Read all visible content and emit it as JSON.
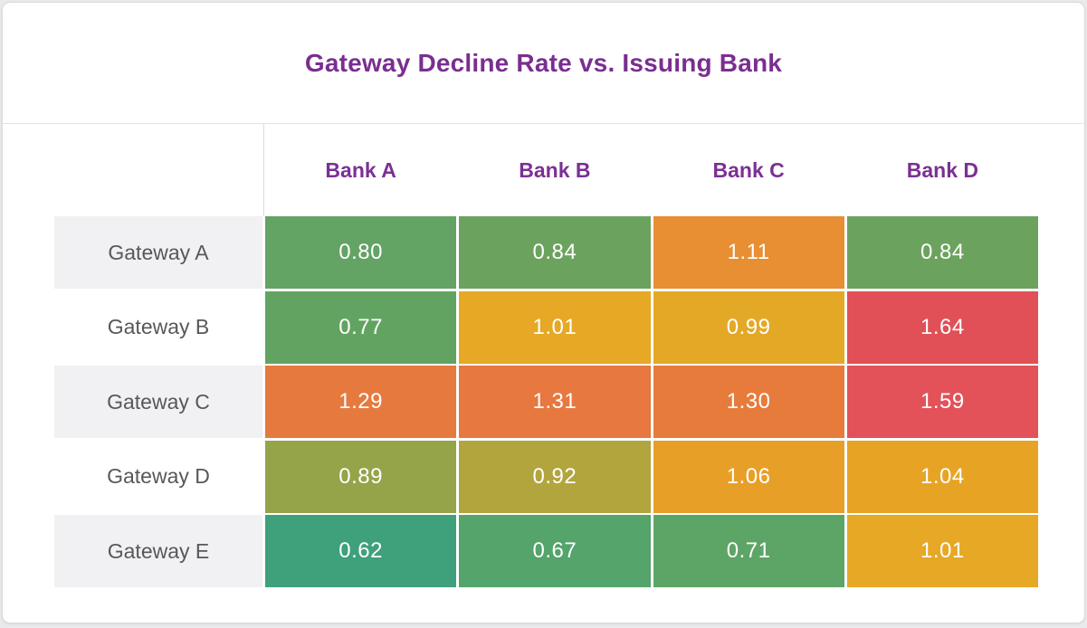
{
  "card": {
    "title": "Gateway Decline Rate vs. Issuing Bank"
  },
  "colors": {
    "title_text": "#7a2e90",
    "column_header_text": "#7b3094",
    "row_label_text": "#57585a",
    "row_stripe": "#f1f1f3",
    "cell_text": "#ffffff",
    "card_background": "#ffffff",
    "card_border": "#d9dadd",
    "header_separator": "#e3e3e6",
    "page_background": "#e9eaec"
  },
  "chart_data": {
    "type": "heatmap",
    "title": "Gateway Decline Rate vs. Issuing Bank",
    "x_categories": [
      "Bank A",
      "Bank B",
      "Bank C",
      "Bank D"
    ],
    "y_categories": [
      "Gateway A",
      "Gateway B",
      "Gateway C",
      "Gateway D",
      "Gateway E"
    ],
    "values": [
      [
        0.8,
        0.84,
        1.11,
        0.84
      ],
      [
        0.77,
        1.01,
        0.99,
        1.64
      ],
      [
        1.29,
        1.31,
        1.3,
        1.59
      ],
      [
        0.89,
        0.92,
        1.06,
        1.04
      ],
      [
        0.62,
        0.67,
        0.71,
        1.01
      ]
    ],
    "cell_labels": [
      [
        "0.80",
        "0.84",
        "1.11",
        "0.84"
      ],
      [
        "0.77",
        "1.01",
        "0.99",
        "1.64"
      ],
      [
        "1.29",
        "1.31",
        "1.30",
        "1.59"
      ],
      [
        "0.89",
        "0.92",
        "1.06",
        "1.04"
      ],
      [
        "0.62",
        "0.67",
        "0.71",
        "1.01"
      ]
    ],
    "cell_colors": [
      [
        "#63a364",
        "#6ba35e",
        "#e88e33",
        "#6ba35e"
      ],
      [
        "#62a362",
        "#e6a825",
        "#e4a827",
        "#e05056"
      ],
      [
        "#e67a3e",
        "#e7783f",
        "#e77b3c",
        "#e25258"
      ],
      [
        "#95a449",
        "#b2a53e",
        "#e89f28",
        "#e7a424"
      ],
      [
        "#3ea17b",
        "#54a46c",
        "#5da566",
        "#e6a825"
      ]
    ],
    "value_range": [
      0.62,
      1.64
    ],
    "color_scale": "low=teal-green, mid=yellow/mustard, high=orange-red",
    "legend_position": "none",
    "grid": false
  }
}
